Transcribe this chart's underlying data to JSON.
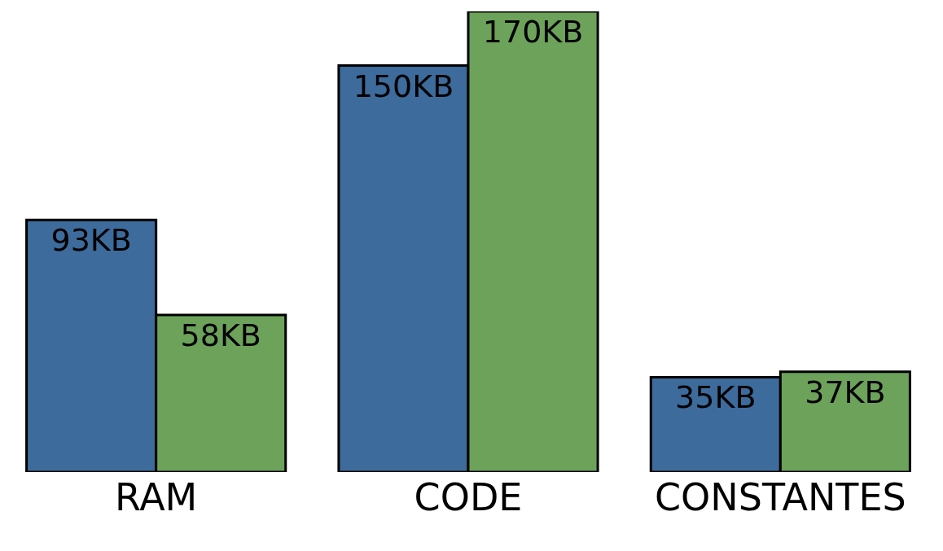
{
  "chart_data": {
    "type": "bar",
    "categories": [
      "RAM",
      "CODE",
      "CONSTANTES"
    ],
    "ylim": [
      0,
      170
    ],
    "tick_labels": "x",
    "series": [
      {
        "color": "#3d6b9c",
        "values": [
          93,
          150,
          35
        ],
        "value_labels": [
          "93KB",
          "150KB",
          "35KB"
        ]
      },
      {
        "color": "#6ca25a",
        "values": [
          58,
          170,
          37
        ],
        "value_labels": [
          "58KB",
          "170KB",
          "37KB"
        ]
      }
    ]
  }
}
